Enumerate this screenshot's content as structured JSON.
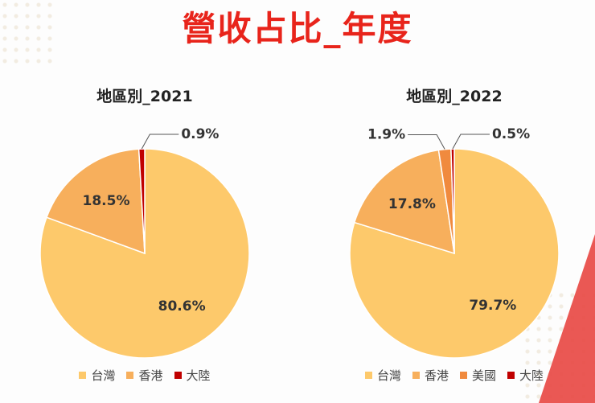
{
  "title": "營收占比_年度",
  "colors": {
    "title": "#e8241b",
    "台灣": "#fdc96b",
    "香港": "#f7af5c",
    "美國": "#f08a3e",
    "大陸": "#c00000"
  },
  "chart_data": [
    {
      "type": "pie",
      "title": "地區別_2021",
      "categories": [
        "台灣",
        "香港",
        "大陸"
      ],
      "values": [
        80.6,
        18.5,
        0.9
      ],
      "labels": [
        "80.6%",
        "18.5%",
        "0.9%"
      ],
      "legend": [
        "台灣",
        "香港",
        "大陸"
      ],
      "legend_position": "bottom"
    },
    {
      "type": "pie",
      "title": "地區別_2022",
      "categories": [
        "台灣",
        "香港",
        "美國",
        "大陸"
      ],
      "values": [
        79.7,
        17.8,
        1.9,
        0.5
      ],
      "labels": [
        "79.7%",
        "17.8%",
        "1.9%",
        "0.5%"
      ],
      "legend": [
        "台灣",
        "香港",
        "美國",
        "大陸"
      ],
      "legend_position": "bottom"
    }
  ]
}
